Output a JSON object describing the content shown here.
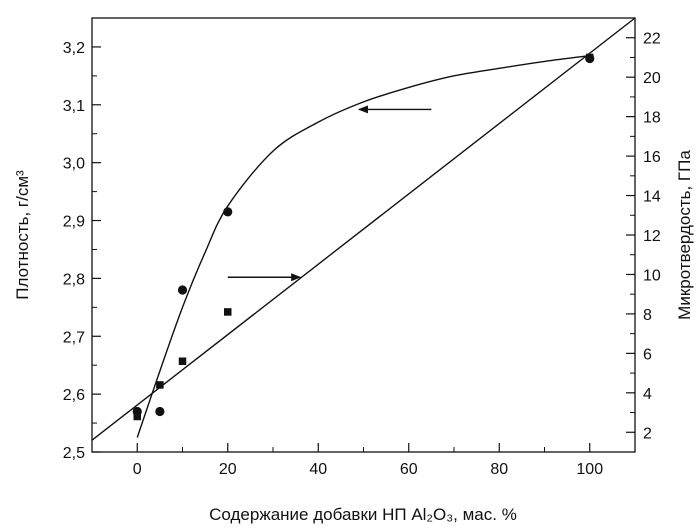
{
  "chart_data": {
    "type": "scatter",
    "xlabel": "Содержание добавки НП Al₂O₃, мас. %",
    "ylabel_left": "Плотность, г/см³",
    "ylabel_right": "Микротвердость, ГПа",
    "xlim": [
      -10,
      110
    ],
    "ylim_left": [
      2.5,
      3.25
    ],
    "ylim_right": [
      1,
      23
    ],
    "x_ticks": [
      {
        "value": 0,
        "label": "0"
      },
      {
        "value": 20,
        "label": "20"
      },
      {
        "value": 40,
        "label": "40"
      },
      {
        "value": 60,
        "label": "60"
      },
      {
        "value": 80,
        "label": "80"
      },
      {
        "value": 100,
        "label": "100"
      }
    ],
    "y_left_ticks": [
      {
        "value": 2.5,
        "label": "2,5"
      },
      {
        "value": 2.6,
        "label": "2,6"
      },
      {
        "value": 2.7,
        "label": "2,7"
      },
      {
        "value": 2.8,
        "label": "2,8"
      },
      {
        "value": 2.9,
        "label": "2,9"
      },
      {
        "value": 3.0,
        "label": "3,0"
      },
      {
        "value": 3.1,
        "label": "3,1"
      },
      {
        "value": 3.2,
        "label": "3,2"
      }
    ],
    "y_right_ticks": [
      {
        "value": 2,
        "label": "2"
      },
      {
        "value": 4,
        "label": "4"
      },
      {
        "value": 6,
        "label": "6"
      },
      {
        "value": 8,
        "label": "8"
      },
      {
        "value": 10,
        "label": "10"
      },
      {
        "value": 12,
        "label": "12"
      },
      {
        "value": 14,
        "label": "14"
      },
      {
        "value": 16,
        "label": "16"
      },
      {
        "value": 18,
        "label": "18"
      },
      {
        "value": 20,
        "label": "20"
      },
      {
        "value": 22,
        "label": "22"
      }
    ],
    "grid": false,
    "series": [
      {
        "axis": "left",
        "marker": "circle",
        "points": [
          {
            "x": 0,
            "y": 2.57
          },
          {
            "x": 5,
            "y": 2.57
          },
          {
            "x": 10,
            "y": 2.78
          },
          {
            "x": 20,
            "y": 2.915
          },
          {
            "x": 100,
            "y": 3.18
          }
        ],
        "fit_curve": [
          {
            "x": 0,
            "y": 2.525
          },
          {
            "x": 5,
            "y": 2.64
          },
          {
            "x": 10,
            "y": 2.75
          },
          {
            "x": 15,
            "y": 2.845
          },
          {
            "x": 20,
            "y": 2.925
          },
          {
            "x": 30,
            "y": 3.02
          },
          {
            "x": 40,
            "y": 3.07
          },
          {
            "x": 50,
            "y": 3.105
          },
          {
            "x": 60,
            "y": 3.13
          },
          {
            "x": 70,
            "y": 3.15
          },
          {
            "x": 80,
            "y": 3.163
          },
          {
            "x": 90,
            "y": 3.175
          },
          {
            "x": 100,
            "y": 3.185
          }
        ]
      },
      {
        "axis": "right",
        "marker": "square",
        "points": [
          {
            "x": 0,
            "y": 2.8
          },
          {
            "x": 5,
            "y": 4.4
          },
          {
            "x": 10,
            "y": 5.6
          },
          {
            "x": 20,
            "y": 8.1
          },
          {
            "x": 100,
            "y": 21.0
          }
        ],
        "fit_line": [
          {
            "x": -10,
            "y": 1.6
          },
          {
            "x": 110,
            "y": 23.0
          }
        ]
      }
    ],
    "annotations": [
      {
        "type": "arrow",
        "direction": "left",
        "from": {
          "x": 65,
          "y_left": 3.092
        },
        "to": {
          "x": 49,
          "y_left": 3.092
        }
      },
      {
        "type": "arrow",
        "direction": "right",
        "from": {
          "x": 20,
          "y_left": 2.802
        },
        "to": {
          "x": 36,
          "y_left": 2.802
        }
      }
    ]
  }
}
